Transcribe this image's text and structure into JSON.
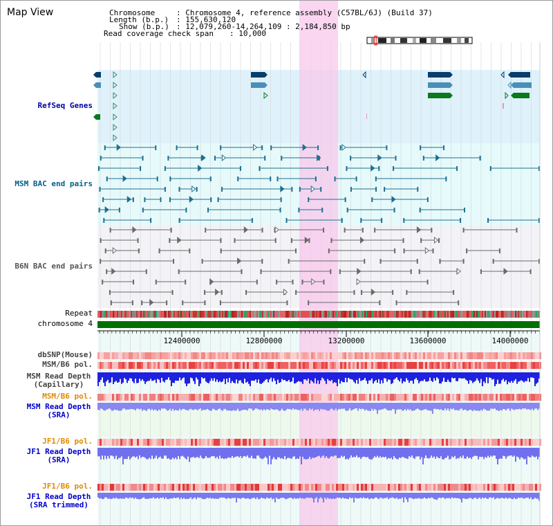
{
  "title": "Map View",
  "info": {
    "chromosome_label": "Chromosome",
    "chromosome_value": ": Chromosome 4, reference assembly (C57BL/6J) (Build 37)",
    "length_label": "Length (b.p.)",
    "length_value": ": 155,630,120",
    "show_label": "Show (b.p.)",
    "show_value": ": 12,079,260-14,264,109 : 2,184,850 bp",
    "read_span_label": "Read coverage check span",
    "read_span_value": ": 10,000"
  },
  "tracks": {
    "refseq": "RefSeq Genes",
    "msm_bac": "MSM BAC end pairs",
    "b6n_bac": "B6N BAC end pairs",
    "repeat": "Repeat",
    "chromosome": "chromosome 4",
    "dbsnp": "dbSNP(Mouse)",
    "msm_b6_pol": "MSM/B6 pol.",
    "msm_depth_cap_1": "MSM Read Depth",
    "msm_depth_cap_2": "(Capillary)",
    "msm_b6_pol_2": "MSM/B6 pol.",
    "msm_depth_sra_1": "MSM Read Depth",
    "msm_depth_sra_2": "(SRA)",
    "jf1_pol": "JF1/B6 pol.",
    "jf1_depth_sra_1": "JF1 Read Depth",
    "jf1_depth_sra_2": "(SRA)",
    "jf1_pol_2": "JF1/B6 pol.",
    "jf1_depth_trim_1": "JF1 Read Depth",
    "jf1_depth_trim_2": "(SRA trimmed)"
  },
  "axis_ticks": [
    "12400000",
    "12800000",
    "13200000",
    "13600000",
    "14000000"
  ],
  "colors": {
    "refseq_label": "#0000aa",
    "msm_label": "#005f8a",
    "b6n_label": "#555555",
    "pol_orange": "#e08a00",
    "depth_blue": "#0000cc",
    "highlight": "#f8c8ec",
    "chromosome_green": "#007000",
    "refseq_bg": "#dff2fb",
    "msm_bg": "#e6fafb",
    "b6n_bg": "#f3f3f7"
  }
}
